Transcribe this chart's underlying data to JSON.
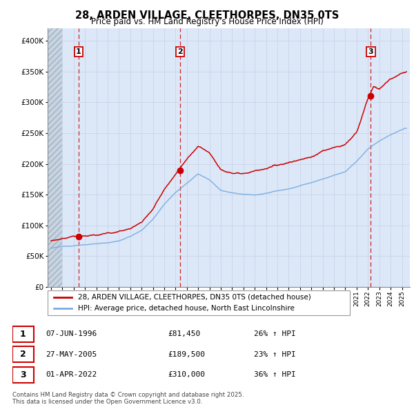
{
  "title": "28, ARDEN VILLAGE, CLEETHORPES, DN35 0TS",
  "subtitle": "Price paid vs. HM Land Registry's House Price Index (HPI)",
  "xlim_start": 1993.7,
  "xlim_end": 2025.7,
  "ylim": [
    0,
    420000
  ],
  "yticks": [
    0,
    50000,
    100000,
    150000,
    200000,
    250000,
    300000,
    350000,
    400000
  ],
  "sale_dates": [
    1996.44,
    2005.41,
    2022.25
  ],
  "sale_prices": [
    81450,
    189500,
    310000
  ],
  "sale_labels": [
    "1",
    "2",
    "3"
  ],
  "legend_line1": "28, ARDEN VILLAGE, CLEETHORPES, DN35 0TS (detached house)",
  "legend_line2": "HPI: Average price, detached house, North East Lincolnshire",
  "table_entries": [
    {
      "label": "1",
      "date": "07-JUN-1996",
      "price": "£81,450",
      "hpi": "26% ↑ HPI"
    },
    {
      "label": "2",
      "date": "27-MAY-2005",
      "price": "£189,500",
      "hpi": "23% ↑ HPI"
    },
    {
      "label": "3",
      "date": "01-APR-2022",
      "price": "£310,000",
      "hpi": "36% ↑ HPI"
    }
  ],
  "footer": "Contains HM Land Registry data © Crown copyright and database right 2025.\nThis data is licensed under the Open Government Licence v3.0.",
  "hpi_color": "#7aade0",
  "price_color": "#cc0000",
  "grid_color": "#c8d4e8",
  "vline_color": "#cc0000",
  "bg_color": "#dce8f8",
  "hatch_color": "#b8c8dc"
}
